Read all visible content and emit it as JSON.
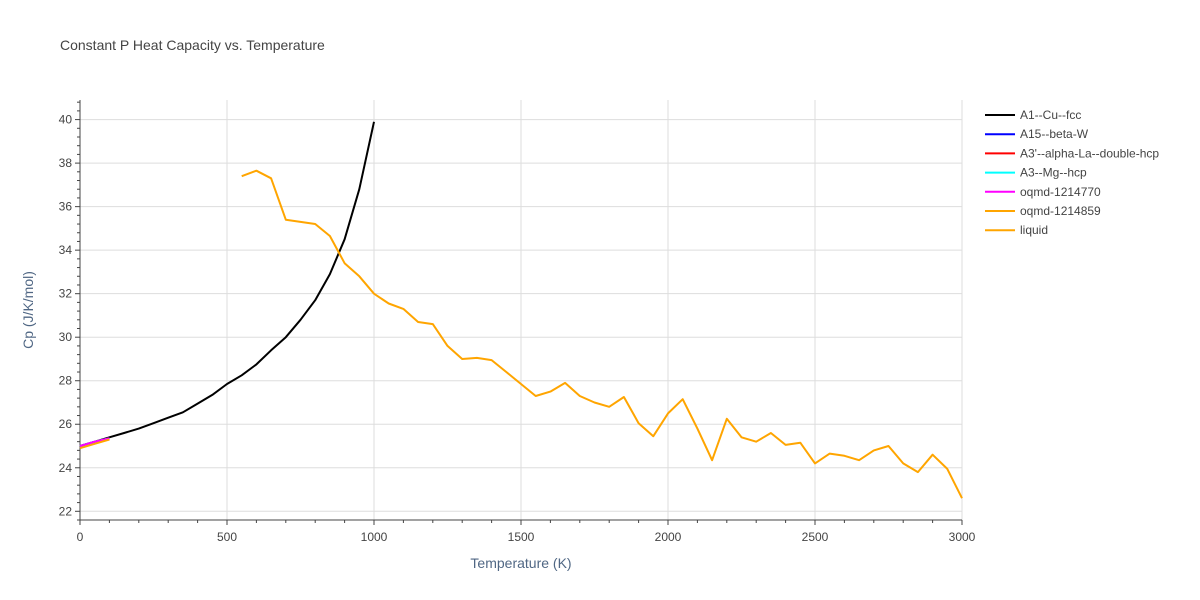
{
  "chart_data": {
    "type": "line",
    "title": "Constant P Heat Capacity vs. Temperature",
    "xlabel": "Temperature (K)",
    "ylabel": "Cp (J/K/mol)",
    "xlim": [
      0,
      3000
    ],
    "ylim": [
      21.6,
      40.9
    ],
    "xticks": [
      0,
      500,
      1000,
      1500,
      2000,
      2500,
      3000
    ],
    "yticks": [
      22,
      24,
      26,
      28,
      30,
      32,
      34,
      36,
      38,
      40
    ],
    "grid": true,
    "legend_position": "top-right",
    "series": [
      {
        "name": "A1--Cu--fcc",
        "color": "#000000",
        "x": [
          0,
          50,
          100,
          150,
          200,
          250,
          300,
          350,
          400,
          450,
          500,
          550,
          600,
          650,
          700,
          750,
          800,
          850,
          900,
          950,
          1000
        ],
        "y": [
          25.0,
          25.2,
          25.4,
          25.6,
          25.8,
          26.05,
          26.3,
          26.55,
          26.95,
          27.35,
          27.85,
          28.25,
          28.75,
          29.4,
          30.0,
          30.8,
          31.7,
          32.9,
          34.5,
          36.8,
          39.9
        ]
      },
      {
        "name": "A15--beta-W",
        "color": "#0000ff",
        "x": [
          0,
          50,
          100
        ],
        "y": [
          25.0,
          25.2,
          25.35
        ]
      },
      {
        "name": "A3'--alpha-La--double-hcp",
        "color": "#ff0000",
        "x": [
          0,
          50,
          100
        ],
        "y": [
          25.0,
          25.2,
          25.35
        ]
      },
      {
        "name": "A3--Mg--hcp",
        "color": "#00ffff",
        "x": [
          0,
          50,
          100
        ],
        "y": [
          25.0,
          25.2,
          25.35
        ]
      },
      {
        "name": "oqmd-1214770",
        "color": "#ff00ff",
        "x": [
          0,
          50,
          100
        ],
        "y": [
          25.0,
          25.2,
          25.35
        ]
      },
      {
        "name": "oqmd-1214859",
        "color": "#ffa500",
        "x": [
          0,
          50,
          100
        ],
        "y": [
          24.9,
          25.1,
          25.3
        ]
      },
      {
        "name": "liquid",
        "color": "#ffa500",
        "x": [
          550,
          600,
          650,
          700,
          750,
          800,
          850,
          900,
          950,
          1000,
          1050,
          1100,
          1150,
          1200,
          1250,
          1300,
          1350,
          1400,
          1450,
          1500,
          1550,
          1600,
          1650,
          1700,
          1750,
          1800,
          1850,
          1900,
          1950,
          2000,
          2050,
          2100,
          2150,
          2200,
          2250,
          2300,
          2350,
          2400,
          2450,
          2500,
          2550,
          2600,
          2650,
          2700,
          2750,
          2800,
          2850,
          2900,
          2950,
          3000
        ],
        "y": [
          37.4,
          37.65,
          37.3,
          35.4,
          35.3,
          35.2,
          34.65,
          33.4,
          32.8,
          32.0,
          31.55,
          31.3,
          30.7,
          30.6,
          29.6,
          29.0,
          29.05,
          28.95,
          28.4,
          27.85,
          27.3,
          27.5,
          27.9,
          27.3,
          27.0,
          26.8,
          27.25,
          26.05,
          25.45,
          26.5,
          27.15,
          25.8,
          24.35,
          26.25,
          25.4,
          25.2,
          25.6,
          25.05,
          25.15,
          24.2,
          24.65,
          24.55,
          24.35,
          24.8,
          25.0,
          24.2,
          23.8,
          24.6,
          23.95,
          22.6
        ]
      }
    ]
  }
}
